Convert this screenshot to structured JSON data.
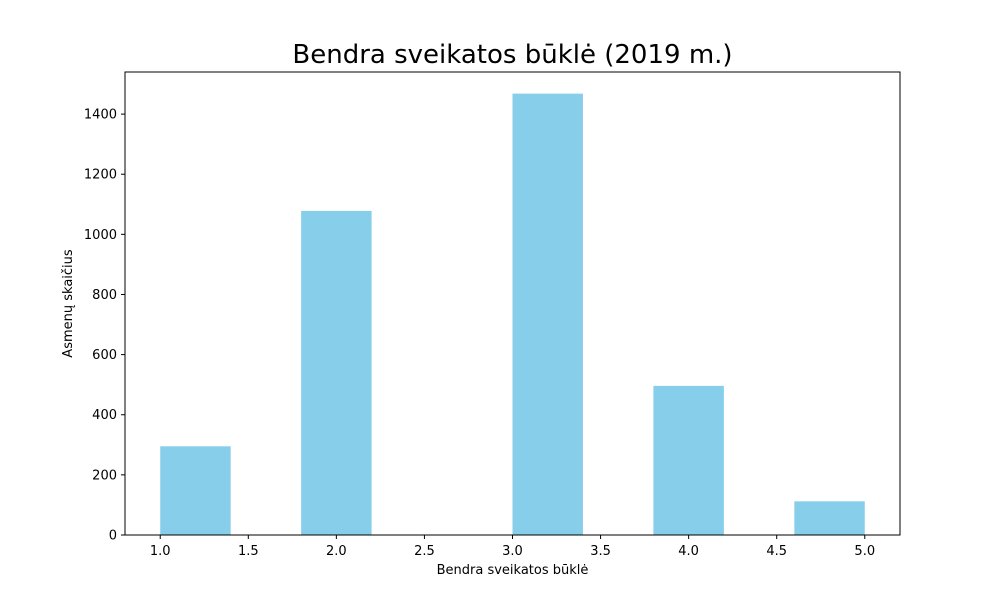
{
  "chart_data": {
    "type": "bar",
    "title": "Bendra sveikatos būklė (2019 m.)",
    "xlabel": "Bendra sveikatos būklė",
    "ylabel": "Asmenų skaičius",
    "bin_edges": [
      1.0,
      1.4,
      1.8,
      2.2,
      2.6,
      3.0,
      3.4,
      3.8,
      4.2,
      4.6,
      5.0
    ],
    "values": [
      295,
      0,
      1078,
      0,
      0,
      1468,
      0,
      496,
      0,
      112
    ],
    "xlim": [
      0.8,
      5.2
    ],
    "ylim": [
      0,
      1540
    ],
    "xticks": [
      1.0,
      1.5,
      2.0,
      2.5,
      3.0,
      3.5,
      4.0,
      4.5,
      5.0
    ],
    "xtick_labels": [
      "1.0",
      "1.5",
      "2.0",
      "2.5",
      "3.0",
      "3.5",
      "4.0",
      "4.5",
      "5.0"
    ],
    "yticks": [
      0,
      200,
      400,
      600,
      800,
      1000,
      1200,
      1400
    ],
    "ytick_labels": [
      "0",
      "200",
      "400",
      "600",
      "800",
      "1000",
      "1200",
      "1400"
    ],
    "bar_color": "#87ceeb",
    "grid": false,
    "legend": "none"
  }
}
